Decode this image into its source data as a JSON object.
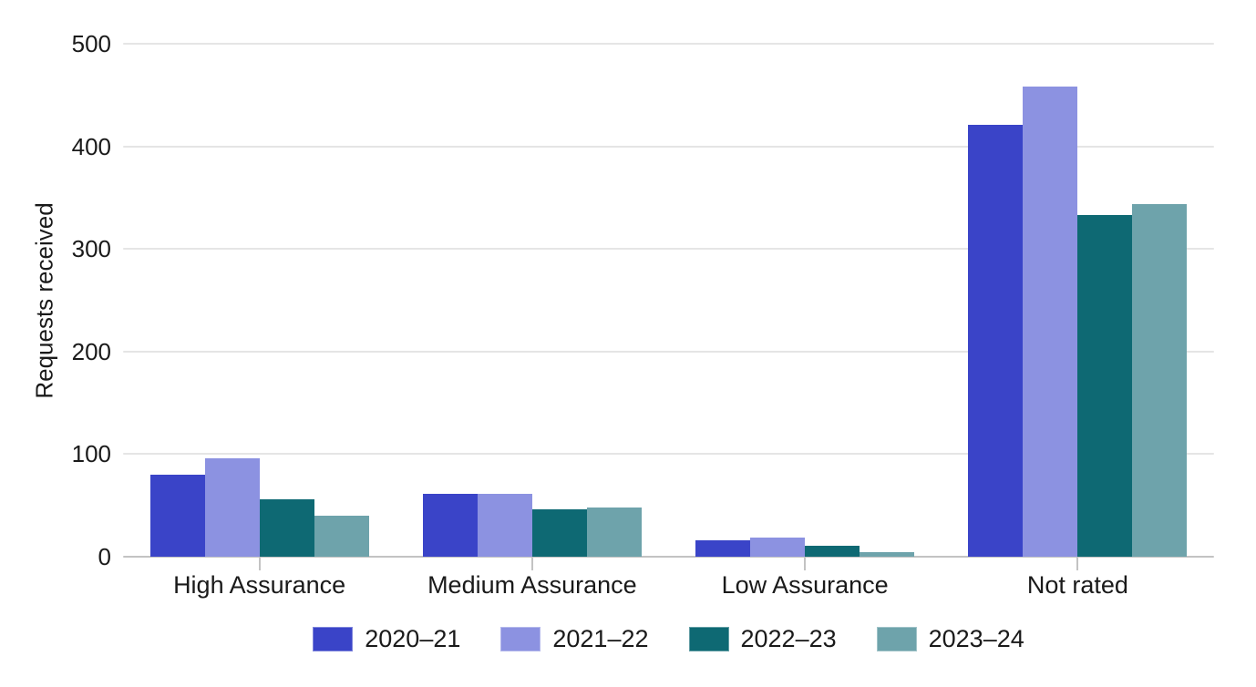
{
  "chart_data": {
    "type": "bar",
    "title": "",
    "xlabel": "",
    "ylabel": "Requests received",
    "categories": [
      "High Assurance",
      "Medium Assurance",
      "Low Assurance",
      "Not rated"
    ],
    "series": [
      {
        "name": "2020–21",
        "color": "#3A44C8",
        "values": [
          80,
          61,
          16,
          421
        ]
      },
      {
        "name": "2021–22",
        "color": "#8C92E1",
        "values": [
          96,
          61,
          19,
          458
        ]
      },
      {
        "name": "2022–23",
        "color": "#0E6973",
        "values": [
          56,
          46,
          11,
          333
        ]
      },
      {
        "name": "2023–24",
        "color": "#6EA3AB",
        "values": [
          40,
          48,
          4,
          344
        ]
      }
    ],
    "ylim": [
      0,
      500
    ],
    "yticks": [
      0,
      100,
      200,
      300,
      400,
      500
    ],
    "grid": true,
    "legend_position": "bottom"
  },
  "colors": {
    "gridline": "#e5e5e5",
    "axis_line": "#c3c3c3",
    "text": "#1a1a1a",
    "background": "#ffffff"
  }
}
